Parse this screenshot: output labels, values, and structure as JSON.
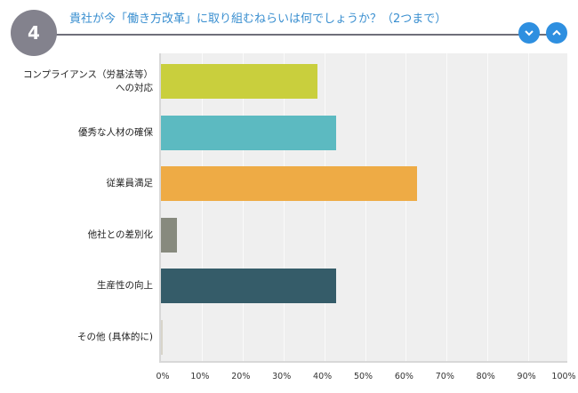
{
  "question_number": "4",
  "title": "貴社が今「働き方改革」に取り組むねらいは何でしょうか？（2つまで）",
  "nav": {
    "down_icon": "chevron-down-icon",
    "up_icon": "chevron-up-icon"
  },
  "chart_data": {
    "type": "bar",
    "orientation": "horizontal",
    "title": "貴社が今「働き方改革」に取り組むねらいは何でしょうか？（2つまで）",
    "categories": [
      "コンプライアンス（労基法等）\nへの対応",
      "優秀な人材の確保",
      "従業員満足",
      "他社との差別化",
      "生産性の向上",
      "その他 (具体的に)"
    ],
    "values": [
      38.3,
      43.0,
      62.8,
      3.9,
      43.0,
      0.5
    ],
    "colors": [
      "#c9cf3d",
      "#5cbac1",
      "#eeab45",
      "#878a7e",
      "#355c69",
      "#d8d5ca"
    ],
    "xlim": [
      0,
      100
    ],
    "xticks": [
      "0%",
      "10%",
      "20%",
      "30%",
      "40%",
      "50%",
      "60%",
      "70%",
      "80%",
      "90%",
      "100%"
    ],
    "xlabel": "",
    "ylabel": "",
    "grid": true
  }
}
